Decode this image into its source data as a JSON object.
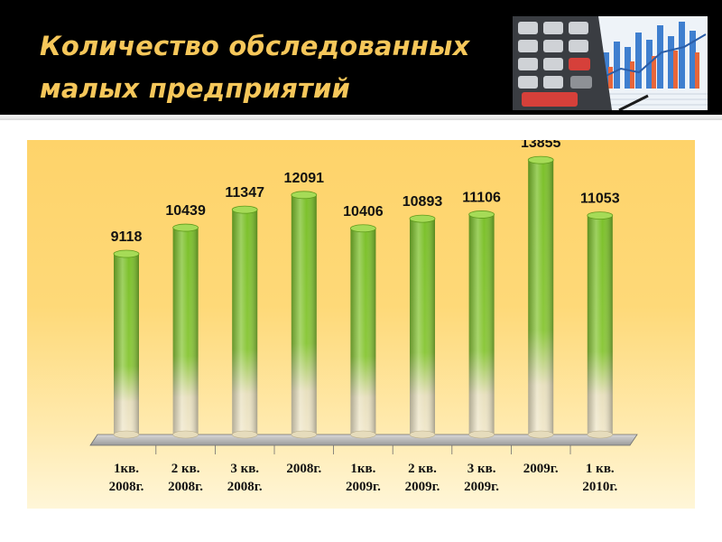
{
  "slide": {
    "title_line1": "Количество обследованных",
    "title_line2": "малых предприятий",
    "image": "calculator-and-charts-photo"
  },
  "colors": {
    "header_bg": "#000000",
    "title_text": "#f6c75a",
    "chart_bg": "#fed36a",
    "bar_green": "#7fc42a",
    "bar_cream": "#efe4c4"
  },
  "chart_data": {
    "type": "bar",
    "categories": [
      [
        "1кв.",
        "2008г."
      ],
      [
        "2 кв.",
        "2008г."
      ],
      [
        "3 кв.",
        "2008г."
      ],
      [
        "2008г."
      ],
      [
        "1кв.",
        "2009г."
      ],
      [
        "2 кв.",
        "2009г."
      ],
      [
        "3 кв.",
        "2009г."
      ],
      [
        "2009г."
      ],
      [
        "1 кв.",
        "2010г."
      ]
    ],
    "values": [
      9118,
      10439,
      11347,
      12091,
      10406,
      10893,
      11106,
      13855,
      11053
    ],
    "ylim": [
      0,
      14500
    ],
    "grid": false,
    "legend": "none",
    "data_labels": true
  }
}
